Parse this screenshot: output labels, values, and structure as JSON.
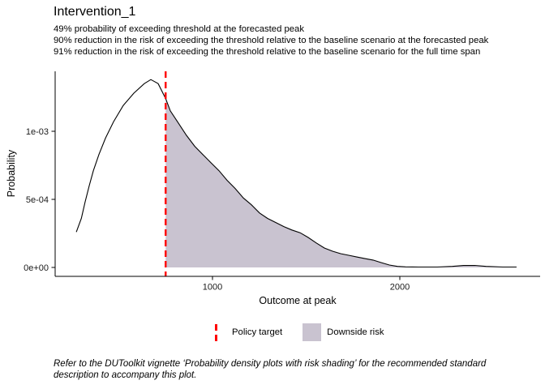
{
  "title": "Intervention_1",
  "subtitle_lines": [
    "49% probability of exceeding threshold at the forecasted peak",
    "90% reduction in the risk of exceeding the threshold relative to the baseline scenario at the forecasted peak",
    "91% reduction in the risk of exceeding the threshold relative to the baseline scenario for the full time span"
  ],
  "legend": {
    "policy_target_label": "Policy target",
    "downside_risk_label": "Downside risk"
  },
  "caption": {
    "line1": "Refer to the DUToolkit vignette ‘Probability density plots with risk shading’ for the recommended standard",
    "line2": "description to accompany this plot."
  },
  "colors": {
    "policy_target": "#FF0000",
    "downside_risk_fill": "#C9C3D0",
    "curve": "#000000"
  },
  "chart_data": {
    "type": "area",
    "title": "Intervention_1",
    "xlabel": "Outcome at peak",
    "ylabel": "Probability",
    "xlim": [
      160,
      2749
    ],
    "ylim": [
      0,
      0.00144
    ],
    "grid": false,
    "legend_position": "bottom",
    "policy_target": 750,
    "xticks": [
      {
        "value": 1000,
        "label": "1000"
      },
      {
        "value": 2000,
        "label": "2000"
      }
    ],
    "yticks": [
      {
        "value": 0,
        "label": "0e+00"
      },
      {
        "value": 0.0005,
        "label": "5e-04"
      },
      {
        "value": 0.001,
        "label": "1e-03"
      }
    ],
    "x": [
      273,
      300,
      320,
      342,
      364,
      394,
      429,
      472,
      524,
      580,
      636,
      671,
      710,
      750,
      775,
      818,
      861,
      905,
      948,
      991,
      1035,
      1078,
      1121,
      1165,
      1208,
      1251,
      1294,
      1338,
      1381,
      1424,
      1468,
      1511,
      1554,
      1597,
      1641,
      1684,
      1727,
      1770,
      1814,
      1857,
      1900,
      1944,
      1987,
      2030,
      2100,
      2200,
      2280,
      2340,
      2400,
      2460,
      2550,
      2623
    ],
    "y": [
      0.00026,
      0.00036,
      0.00048,
      0.0006,
      0.00071,
      0.00083,
      0.00095,
      0.00107,
      0.00119,
      0.00128,
      0.00135,
      0.00138,
      0.00135,
      0.00124,
      0.00115,
      0.00106,
      0.00097,
      0.00089,
      0.00083,
      0.00077,
      0.00071,
      0.00064,
      0.00058,
      0.00051,
      0.00046,
      0.0004,
      0.00036,
      0.00033,
      0.0003,
      0.000275,
      0.000255,
      0.00022,
      0.00018,
      0.000143,
      0.000119,
      0.000101,
      8.9e-05,
      7.7e-05,
      6.5e-05,
      5.4e-05,
      3.6e-05,
      1.8e-05,
      8e-06,
      4e-06,
      3e-06,
      3e-06,
      8e-06,
      1.4e-05,
      1.5e-05,
      8e-06,
      3e-06,
      3e-06
    ]
  }
}
